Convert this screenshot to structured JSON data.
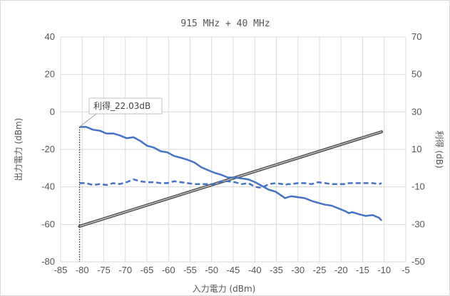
{
  "chart_data": {
    "type": "line",
    "title": "915 MHz + 40 MHz",
    "xlabel": "入力電力 (dBm)",
    "ylabel_left": "出力電力 (dBm)",
    "ylabel_right": "利得 (dB)",
    "xlim": [
      -85,
      -5
    ],
    "ylim_left": [
      -80,
      40
    ],
    "ylim_right": [
      -50,
      70
    ],
    "x_ticks": [
      "-85",
      "-80",
      "-75",
      "-70",
      "-65",
      "-60",
      "-55",
      "-50",
      "-45",
      "-40",
      "-35",
      "-30",
      "-25",
      "-20",
      "-15",
      "-10",
      "-5"
    ],
    "y_ticks_left": [
      "40",
      "20",
      "0",
      "-20",
      "-40",
      "-60",
      "-80"
    ],
    "y_ticks_right": [
      "70",
      "50",
      "30",
      "10",
      "-10",
      "-30",
      "-50"
    ],
    "grid": true,
    "annotation": {
      "text": "利得_22.03dB",
      "x": -80.6,
      "y": 22.03
    },
    "series": [
      {
        "axis": "left",
        "style": "solid-double",
        "color": "#555555",
        "x": [
          -80.6,
          -10.6
        ],
        "y": [
          -61.0,
          -10.6
        ]
      },
      {
        "axis": "right",
        "style": "solid",
        "color": "#4472c4",
        "x": [
          -80.6,
          -79.1,
          -77.5,
          -75.9,
          -74.4,
          -72.8,
          -71.3,
          -69.7,
          -68.1,
          -66.5,
          -65.0,
          -63.4,
          -61.8,
          -60.3,
          -58.7,
          -57.1,
          -55.6,
          -54.0,
          -52.4,
          -50.9,
          -49.3,
          -47.8,
          -46.2,
          -44.6,
          -43.0,
          -41.5,
          -39.9,
          -38.3,
          -36.8,
          -35.2,
          -33.6,
          -33.0,
          -32.3,
          -31.5,
          -30.0,
          -28.4,
          -26.8,
          -25.3,
          -23.7,
          -22.2,
          -20.6,
          -19.0,
          -18.2,
          -17.4,
          -15.9,
          -14.3,
          -12.7,
          -11.2,
          -10.6
        ],
        "y": [
          22.0,
          22.0,
          20.5,
          20.0,
          18.5,
          18.5,
          17.5,
          16.0,
          16.5,
          14.5,
          12.0,
          11.0,
          9.0,
          8.5,
          6.5,
          5.5,
          4.5,
          3.0,
          0.5,
          -1.0,
          -2.5,
          -3.5,
          -5.0,
          -5.0,
          -5.5,
          -6.0,
          -7.5,
          -9.5,
          -11.5,
          -12.5,
          -15.0,
          -16.0,
          -15.5,
          -15.0,
          -15.5,
          -16.0,
          -17.5,
          -18.5,
          -19.5,
          -20.0,
          -21.5,
          -23.0,
          -24.0,
          -23.5,
          -24.5,
          -25.5,
          -25.0,
          -26.5,
          -28.0
        ]
      },
      {
        "axis": "left",
        "style": "dashed",
        "color": "#4472c4",
        "x": [
          -80.6,
          -79.1,
          -77.5,
          -75.9,
          -74.4,
          -72.8,
          -71.3,
          -69.7,
          -68.1,
          -66.5,
          -65.0,
          -63.4,
          -61.8,
          -60.3,
          -58.7,
          -57.1,
          -55.6,
          -54.0,
          -52.4,
          -50.9,
          -49.3,
          -47.8,
          -46.2,
          -44.6,
          -43.0,
          -41.5,
          -39.9,
          -38.3,
          -36.8,
          -35.2,
          -33.6,
          -33.0,
          -32.3,
          -31.5,
          -30.0,
          -28.4,
          -26.8,
          -25.3,
          -23.7,
          -22.2,
          -20.6,
          -19.0,
          -18.2,
          -17.4,
          -15.9,
          -14.3,
          -12.7,
          -11.2,
          -10.6
        ],
        "y": [
          -38.0,
          -38.0,
          -39.0,
          -38.5,
          -39.0,
          -38.0,
          -38.5,
          -37.5,
          -36.0,
          -37.0,
          -37.5,
          -37.5,
          -38.0,
          -38.0,
          -37.0,
          -37.5,
          -38.0,
          -38.5,
          -38.5,
          -38.5,
          -38.5,
          -37.0,
          -37.0,
          -37.5,
          -38.5,
          -38.0,
          -40.0,
          -40.5,
          -38.5,
          -38.0,
          -38.5,
          -39.0,
          -38.5,
          -38.5,
          -38.0,
          -38.0,
          -38.5,
          -37.5,
          -38.0,
          -38.5,
          -38.5,
          -38.5,
          -38.0,
          -38.0,
          -38.0,
          -38.0,
          -38.0,
          -38.5,
          -38.0
        ]
      }
    ]
  }
}
